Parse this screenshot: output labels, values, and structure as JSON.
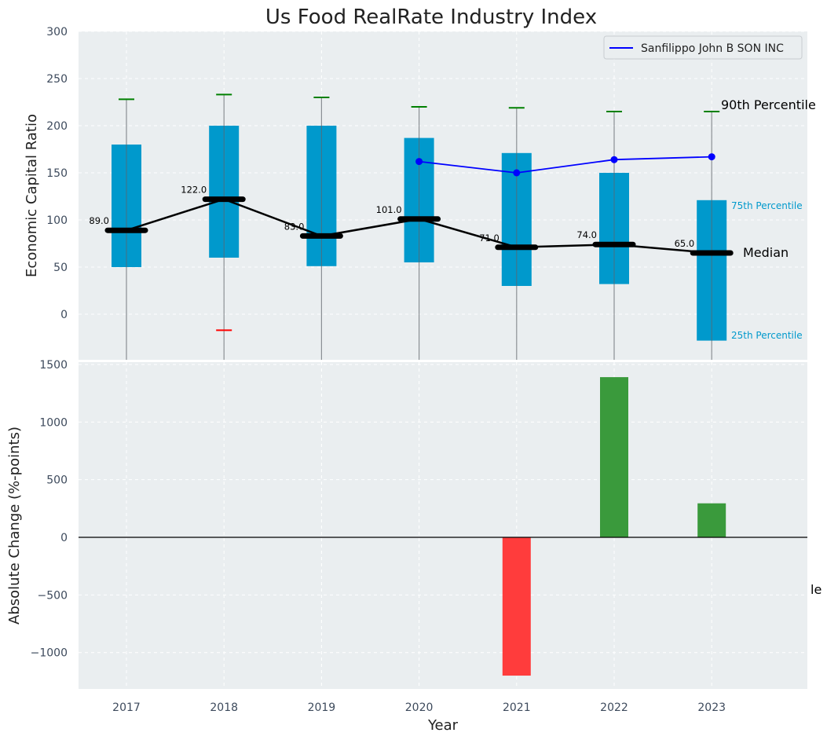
{
  "chart_data": [
    {
      "type": "box",
      "title": "Us Food RealRate Industry Index",
      "xlabel": "",
      "ylabel": "Economic Capital Ratio",
      "ylim": [
        -50,
        300
      ],
      "yticks": [
        0,
        50,
        100,
        150,
        200,
        250,
        300
      ],
      "categories": [
        "2017",
        "2018",
        "2019",
        "2020",
        "2021",
        "2022",
        "2023"
      ],
      "p25": [
        50,
        60,
        51,
        55,
        30,
        32,
        -28
      ],
      "p75": [
        180,
        200,
        200,
        187,
        171,
        150,
        121
      ],
      "median": [
        89,
        122,
        83,
        101,
        71,
        74,
        65
      ],
      "median_labels": [
        "89.0",
        "122.0",
        "83.0",
        "101.0",
        "71.0",
        "74.0",
        "65.0"
      ],
      "whisker_high": [
        228,
        233,
        230,
        220,
        219,
        215,
        215
      ],
      "whisker_low": [
        null,
        -17,
        null,
        null,
        null,
        null,
        null
      ],
      "whisker_high_color": "#008000",
      "whisker_low_color": "#ff0000",
      "box_color": "#0099cc",
      "median_color": "#000000",
      "company": {
        "name": "Sanfilippo John B SON INC",
        "x": [
          "2020",
          "2021",
          "2022",
          "2023"
        ],
        "values": [
          162,
          150,
          164,
          167
        ],
        "color": "#0000ff"
      },
      "annotations": {
        "p90": "90th Percentile",
        "p75": "75th Percentile",
        "median": "Median",
        "p25": "25th Percentile"
      },
      "legend_position": "top-right",
      "grid": true
    },
    {
      "type": "bar",
      "xlabel": "Year",
      "ylabel": "Absolute Change (%-points)",
      "ylim": [
        -1320,
        1500
      ],
      "yticks": [
        -1000,
        -500,
        0,
        500,
        1000,
        1500
      ],
      "ytick_labels": [
        "−1000",
        "−500",
        "0",
        "500",
        "1000",
        "1500"
      ],
      "categories": [
        "2017",
        "2018",
        "2019",
        "2020",
        "2021",
        "2022",
        "2023"
      ],
      "values": [
        null,
        null,
        null,
        null,
        -1200,
        1390,
        295
      ],
      "positive_color": "#3a9a3c",
      "negative_color": "#ff3c3c",
      "clipped_label": "le",
      "grid": true
    }
  ]
}
